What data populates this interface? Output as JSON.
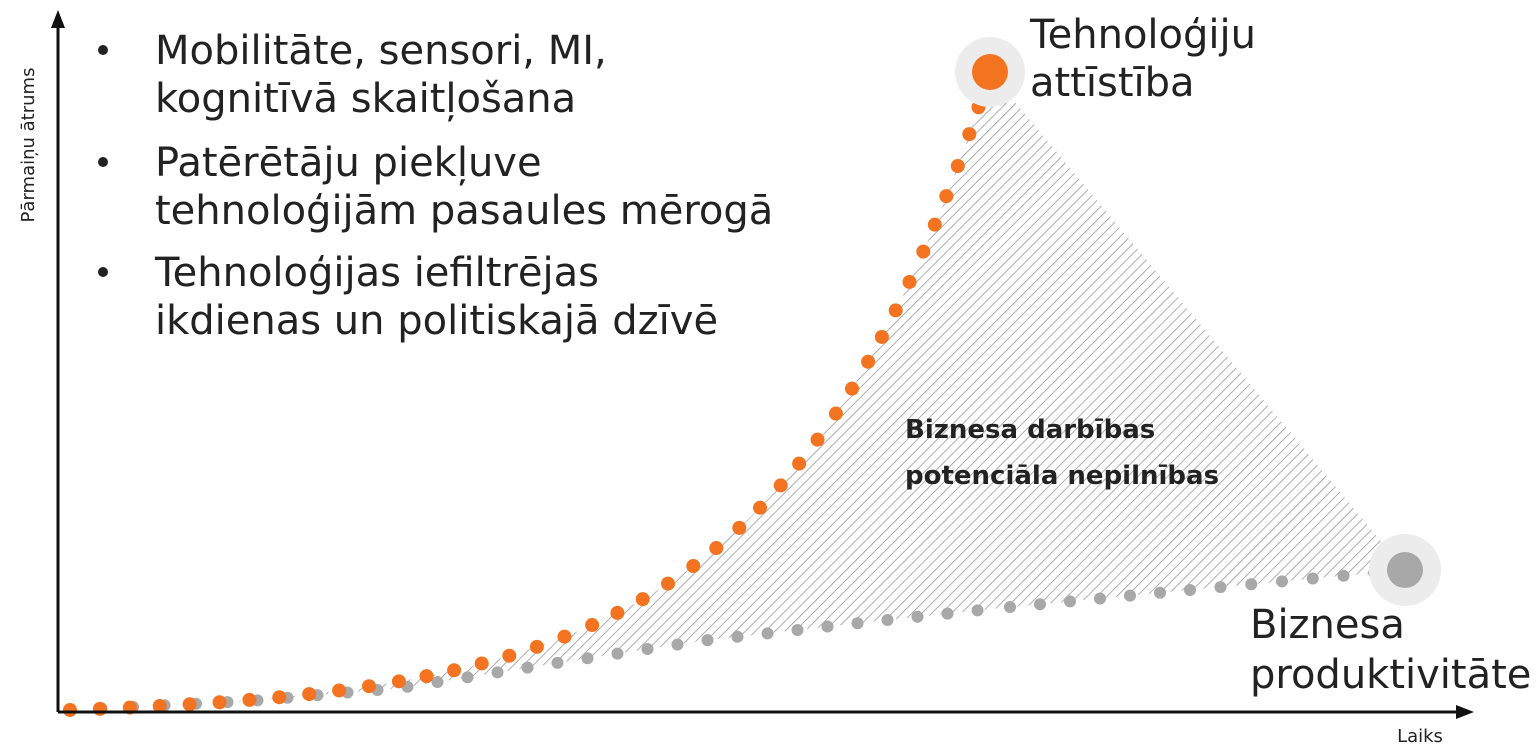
{
  "y_axis_label": "Pārmaiņu ātrums",
  "x_axis_label": "Laiks",
  "bullets": [
    [
      "Mobilitāte, sensori, MI,",
      "kognitīvā skaitļošana"
    ],
    [
      "Patērētāju piekļuve",
      "tehnoloģijām pasaules mērogā"
    ],
    [
      "Tehnoloģijas iefiltrējas",
      "ikdienas un politiskajā dzīvē"
    ]
  ],
  "technology_label": [
    "Tehnoloģiju",
    "attīstība"
  ],
  "business_label": [
    "Biznesa",
    "produktivitāte"
  ],
  "gap_label": [
    "Biznesa darbības",
    "potenciāla nepilnības"
  ]
}
